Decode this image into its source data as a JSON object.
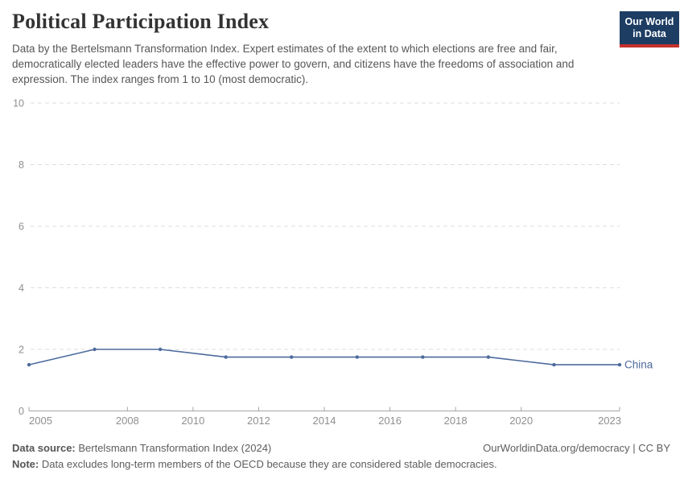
{
  "header": {
    "title": "Political Participation Index",
    "subtitle": "Data by the Bertelsmann Transformation Index. Expert estimates of the extent to which elections are free and fair, democratically elected leaders have the effective power to govern, and citizens have the freedoms of association and expression. The index ranges from 1 to 10 (most democratic)."
  },
  "logo": {
    "line1": "Our World",
    "line2": "in Data",
    "bg_color": "#1d3d63",
    "stripe_color": "#c5302b"
  },
  "chart_data": {
    "type": "line",
    "title": "Political Participation Index",
    "x": [
      2005,
      2007,
      2009,
      2011,
      2013,
      2015,
      2017,
      2019,
      2021,
      2023
    ],
    "series": [
      {
        "name": "China",
        "values": [
          1.5,
          2.0,
          2.0,
          1.75,
          1.75,
          1.75,
          1.75,
          1.75,
          1.5,
          1.5
        ],
        "color": "#4c6a9c"
      }
    ],
    "xlabel": "",
    "ylabel": "",
    "xlim": [
      2005,
      2023
    ],
    "ylim": [
      0,
      10
    ],
    "y_ticks": [
      0,
      2,
      4,
      6,
      8,
      10
    ],
    "x_ticks": [
      2005,
      2008,
      2010,
      2012,
      2014,
      2016,
      2018,
      2020,
      2023
    ],
    "grid": "horizontal-dashed",
    "legend_position": "line-end-label",
    "axis_label_color": "#8f8f8f",
    "grid_color": "#dedede",
    "axis_line_color": "#a5a5a5"
  },
  "footer": {
    "data_source_label": "Data source:",
    "data_source_text": " Bertelsmann Transformation Index (2024)",
    "link_text": "OurWorldinData.org/democracy | CC BY",
    "note_label": "Note:",
    "note_text": " Data excludes long-term members of the OECD because they are considered stable democracies."
  }
}
